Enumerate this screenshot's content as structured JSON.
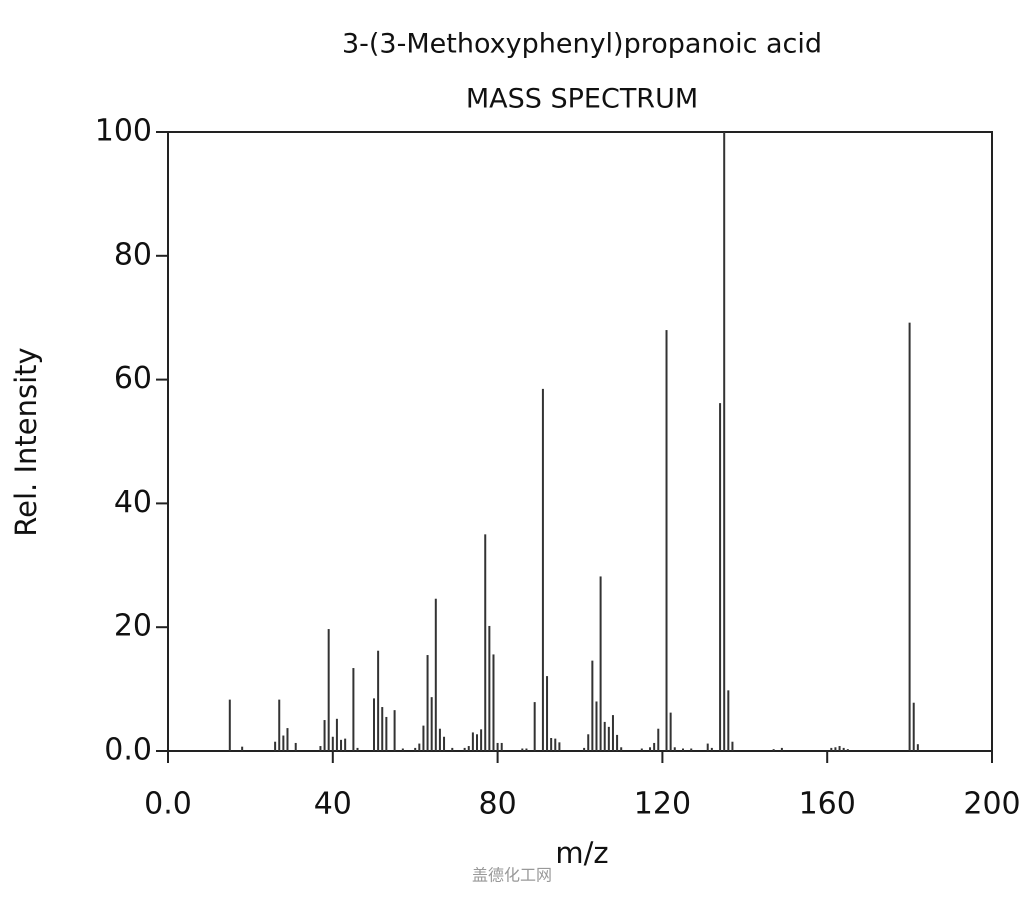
{
  "chart_data": {
    "type": "bar",
    "title": "3-(3-Methoxyphenyl)propanoic acid",
    "subtitle": "MASS SPECTRUM",
    "xlabel": "m/z",
    "ylabel": "Rel. Intensity",
    "color": "#333333",
    "xlim": [
      0,
      200
    ],
    "ylim": [
      0,
      100
    ],
    "xticks": [
      {
        "value": 0,
        "label": "0.0"
      },
      40,
      80,
      120,
      160,
      200
    ],
    "yticks": [
      {
        "value": 0,
        "label": "0.0"
      },
      20,
      40,
      60,
      80,
      100
    ],
    "x": [
      15,
      18,
      26,
      27,
      28,
      29,
      31,
      37,
      38,
      39,
      40,
      41,
      42,
      43,
      45,
      46,
      50,
      51,
      52,
      53,
      55,
      57,
      60,
      61,
      62,
      63,
      64,
      65,
      66,
      67,
      69,
      72,
      73,
      74,
      75,
      76,
      77,
      78,
      79,
      80,
      81,
      86,
      87,
      89,
      91,
      92,
      93,
      94,
      95,
      101,
      102,
      103,
      104,
      105,
      106,
      107,
      108,
      109,
      110,
      115,
      117,
      118,
      119,
      121,
      122,
      123,
      125,
      127,
      131,
      132,
      134,
      135,
      136,
      137,
      147,
      149,
      161,
      162,
      163,
      164,
      165,
      180,
      181,
      182
    ],
    "values": [
      8.3,
      0.7,
      1.5,
      8.3,
      2.5,
      3.7,
      1.3,
      0.8,
      5.0,
      19.7,
      2.3,
      5.2,
      1.8,
      2.0,
      13.4,
      0.5,
      8.5,
      16.2,
      7.1,
      5.5,
      6.6,
      0.4,
      0.5,
      1.2,
      4.1,
      15.5,
      8.7,
      24.6,
      3.6,
      2.3,
      0.5,
      0.5,
      0.8,
      3.0,
      2.7,
      3.5,
      35,
      20.2,
      15.6,
      1.3,
      1.3,
      0.4,
      0.4,
      7.9,
      58.5,
      12.1,
      2.1,
      2.0,
      1.4,
      0.5,
      2.7,
      14.6,
      8.0,
      28.2,
      4.7,
      3.9,
      5.8,
      2.6,
      0.6,
      0.4,
      0.6,
      1.3,
      3.6,
      68,
      6.2,
      0.6,
      0.4,
      0.4,
      1.2,
      0.5,
      56.2,
      100,
      9.8,
      1.5,
      0.3,
      0.5,
      0.5,
      0.6,
      0.8,
      0.5,
      0.3,
      69.2,
      7.8,
      1.1
    ]
  },
  "watermark": "盖德化工网"
}
